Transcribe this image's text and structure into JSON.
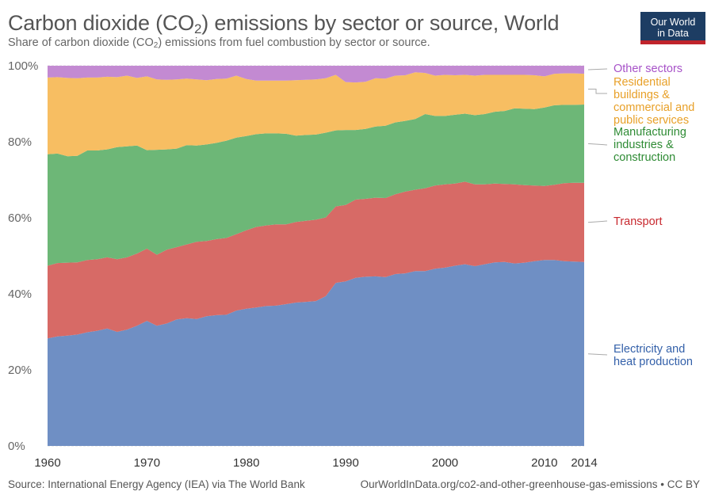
{
  "header": {
    "title_pre": "Carbon dioxide (CO",
    "title_sub": "2",
    "title_post": ") emissions by sector or source, World",
    "subtitle_pre": "Share of carbon dioxide (CO",
    "subtitle_sub": "2",
    "subtitle_post": ") emissions from fuel combustion by sector or source."
  },
  "logo": {
    "line1": "Our World",
    "line2": "in Data"
  },
  "footer": {
    "source": "Source: International Energy Agency (IEA) via The World Bank",
    "url": "OurWorldInData.org/co2-and-other-greenhouse-gas-emissions • CC BY"
  },
  "chart_data": {
    "type": "area",
    "stacked": true,
    "title": "Carbon dioxide (CO2) emissions by sector or source, World",
    "subtitle": "Share of carbon dioxide (CO2) emissions from fuel combustion by sector or source.",
    "x": [
      1960,
      1961,
      1962,
      1963,
      1964,
      1965,
      1966,
      1967,
      1968,
      1969,
      1970,
      1971,
      1972,
      1973,
      1974,
      1975,
      1976,
      1977,
      1978,
      1979,
      1980,
      1981,
      1982,
      1983,
      1984,
      1985,
      1986,
      1987,
      1988,
      1989,
      1990,
      1991,
      1992,
      1993,
      1994,
      1995,
      1996,
      1997,
      1998,
      1999,
      2000,
      2001,
      2002,
      2003,
      2004,
      2005,
      2006,
      2007,
      2008,
      2009,
      2010,
      2011,
      2012,
      2013,
      2014
    ],
    "xticks": [
      "1960",
      "1970",
      "1980",
      "1990",
      "2000",
      "2010",
      "2014"
    ],
    "xtick_values": [
      1960,
      1970,
      1980,
      1990,
      2000,
      2010,
      2014
    ],
    "ylim": [
      0,
      100
    ],
    "yticks": [
      "0%",
      "20%",
      "40%",
      "60%",
      "80%",
      "100%"
    ],
    "ytick_values": [
      0,
      20,
      40,
      60,
      80,
      100
    ],
    "grid": true,
    "legend_position": "right",
    "series": [
      {
        "name": "Electricity and heat production",
        "legend_lines": [
          "Electricity and",
          "heat production"
        ],
        "color": "#6f8fc4",
        "text_color": "#3360a9",
        "values": [
          28.3,
          28.8,
          29.0,
          29.3,
          29.9,
          30.3,
          30.9,
          30.0,
          30.6,
          31.6,
          32.9,
          31.6,
          32.2,
          33.3,
          33.6,
          33.4,
          34.1,
          34.4,
          34.5,
          35.6,
          36.1,
          36.4,
          36.8,
          36.9,
          37.3,
          37.7,
          37.9,
          38.1,
          39.4,
          42.9,
          43.3,
          44.2,
          44.5,
          44.6,
          44.4,
          45.2,
          45.4,
          46.0,
          46.0,
          46.6,
          46.9,
          47.4,
          47.8,
          47.3,
          47.8,
          48.3,
          48.4,
          48.0,
          48.2,
          48.6,
          48.9,
          48.9,
          48.6,
          48.5,
          48.4
        ]
      },
      {
        "name": "Transport",
        "legend_lines": [
          "Transport"
        ],
        "color": "#d76a66",
        "text_color": "#c8282e",
        "values": [
          19.1,
          19.3,
          19.2,
          19.0,
          19.0,
          18.8,
          18.7,
          19.1,
          19.0,
          19.0,
          19.0,
          18.7,
          19.4,
          19.0,
          19.4,
          20.3,
          19.8,
          20.0,
          20.2,
          20.1,
          20.6,
          21.2,
          21.2,
          21.4,
          21.0,
          21.2,
          21.3,
          21.4,
          20.7,
          20.1,
          20.1,
          20.6,
          20.5,
          20.7,
          20.8,
          21.0,
          21.5,
          21.4,
          21.8,
          21.9,
          21.9,
          21.6,
          21.7,
          21.5,
          21.0,
          20.7,
          20.5,
          20.8,
          20.4,
          19.9,
          19.5,
          19.8,
          20.5,
          20.7,
          20.8
        ]
      },
      {
        "name": "Manufacturing industries & construction",
        "legend_lines": [
          "Manufacturing",
          "industries &",
          "construction"
        ],
        "color": "#6db777",
        "text_color": "#2e8b34",
        "values": [
          29.3,
          28.8,
          28.0,
          28.0,
          28.8,
          28.6,
          28.4,
          29.5,
          29.2,
          28.4,
          25.9,
          27.6,
          26.4,
          25.9,
          26.1,
          25.3,
          25.4,
          25.3,
          25.6,
          25.4,
          24.8,
          24.4,
          24.2,
          23.9,
          23.8,
          22.7,
          22.6,
          22.4,
          22.3,
          20.0,
          19.7,
          18.3,
          18.4,
          18.7,
          19.0,
          18.9,
          18.6,
          18.6,
          19.5,
          18.3,
          18.0,
          18.1,
          17.9,
          18.2,
          18.5,
          18.9,
          19.2,
          20.0,
          20.1,
          20.1,
          20.6,
          20.9,
          20.6,
          20.5,
          20.6
        ]
      },
      {
        "name": "Residential buildings & commercial and public services",
        "legend_lines": [
          "Residential",
          "buildings &",
          "commercial and",
          "public services"
        ],
        "color": "#f7be62",
        "text_color": "#e8a028",
        "values": [
          20.2,
          20.1,
          20.6,
          20.4,
          19.2,
          19.2,
          19.1,
          18.4,
          18.6,
          17.8,
          19.4,
          18.5,
          18.3,
          18.2,
          17.5,
          17.4,
          16.9,
          16.8,
          16.3,
          16.3,
          15.0,
          14.1,
          13.9,
          13.9,
          14.0,
          14.6,
          14.5,
          14.5,
          14.3,
          14.6,
          12.6,
          12.5,
          12.4,
          12.7,
          12.4,
          12.3,
          12.0,
          12.3,
          10.8,
          10.6,
          10.8,
          10.4,
          10.2,
          10.4,
          10.3,
          9.7,
          9.5,
          8.8,
          8.9,
          8.9,
          8.2,
          8.3,
          8.3,
          8.3,
          8.1
        ]
      },
      {
        "name": "Other sectors",
        "legend_lines": [
          "Other sectors"
        ],
        "color": "#c38ad2",
        "text_color": "#a752c8",
        "values": [
          3.1,
          3.0,
          3.2,
          3.3,
          3.1,
          3.1,
          2.9,
          3.0,
          2.6,
          3.2,
          2.8,
          3.6,
          3.7,
          3.6,
          3.4,
          3.6,
          3.8,
          3.5,
          3.4,
          2.6,
          3.5,
          3.9,
          3.9,
          3.9,
          3.9,
          3.8,
          3.7,
          3.6,
          3.3,
          2.4,
          4.3,
          4.4,
          4.2,
          3.3,
          3.4,
          2.6,
          2.5,
          1.7,
          1.9,
          2.6,
          2.4,
          2.5,
          2.4,
          2.6,
          2.4,
          2.4,
          2.4,
          2.4,
          2.4,
          2.5,
          2.8,
          2.1,
          2.0,
          2.0,
          2.1
        ]
      }
    ]
  }
}
